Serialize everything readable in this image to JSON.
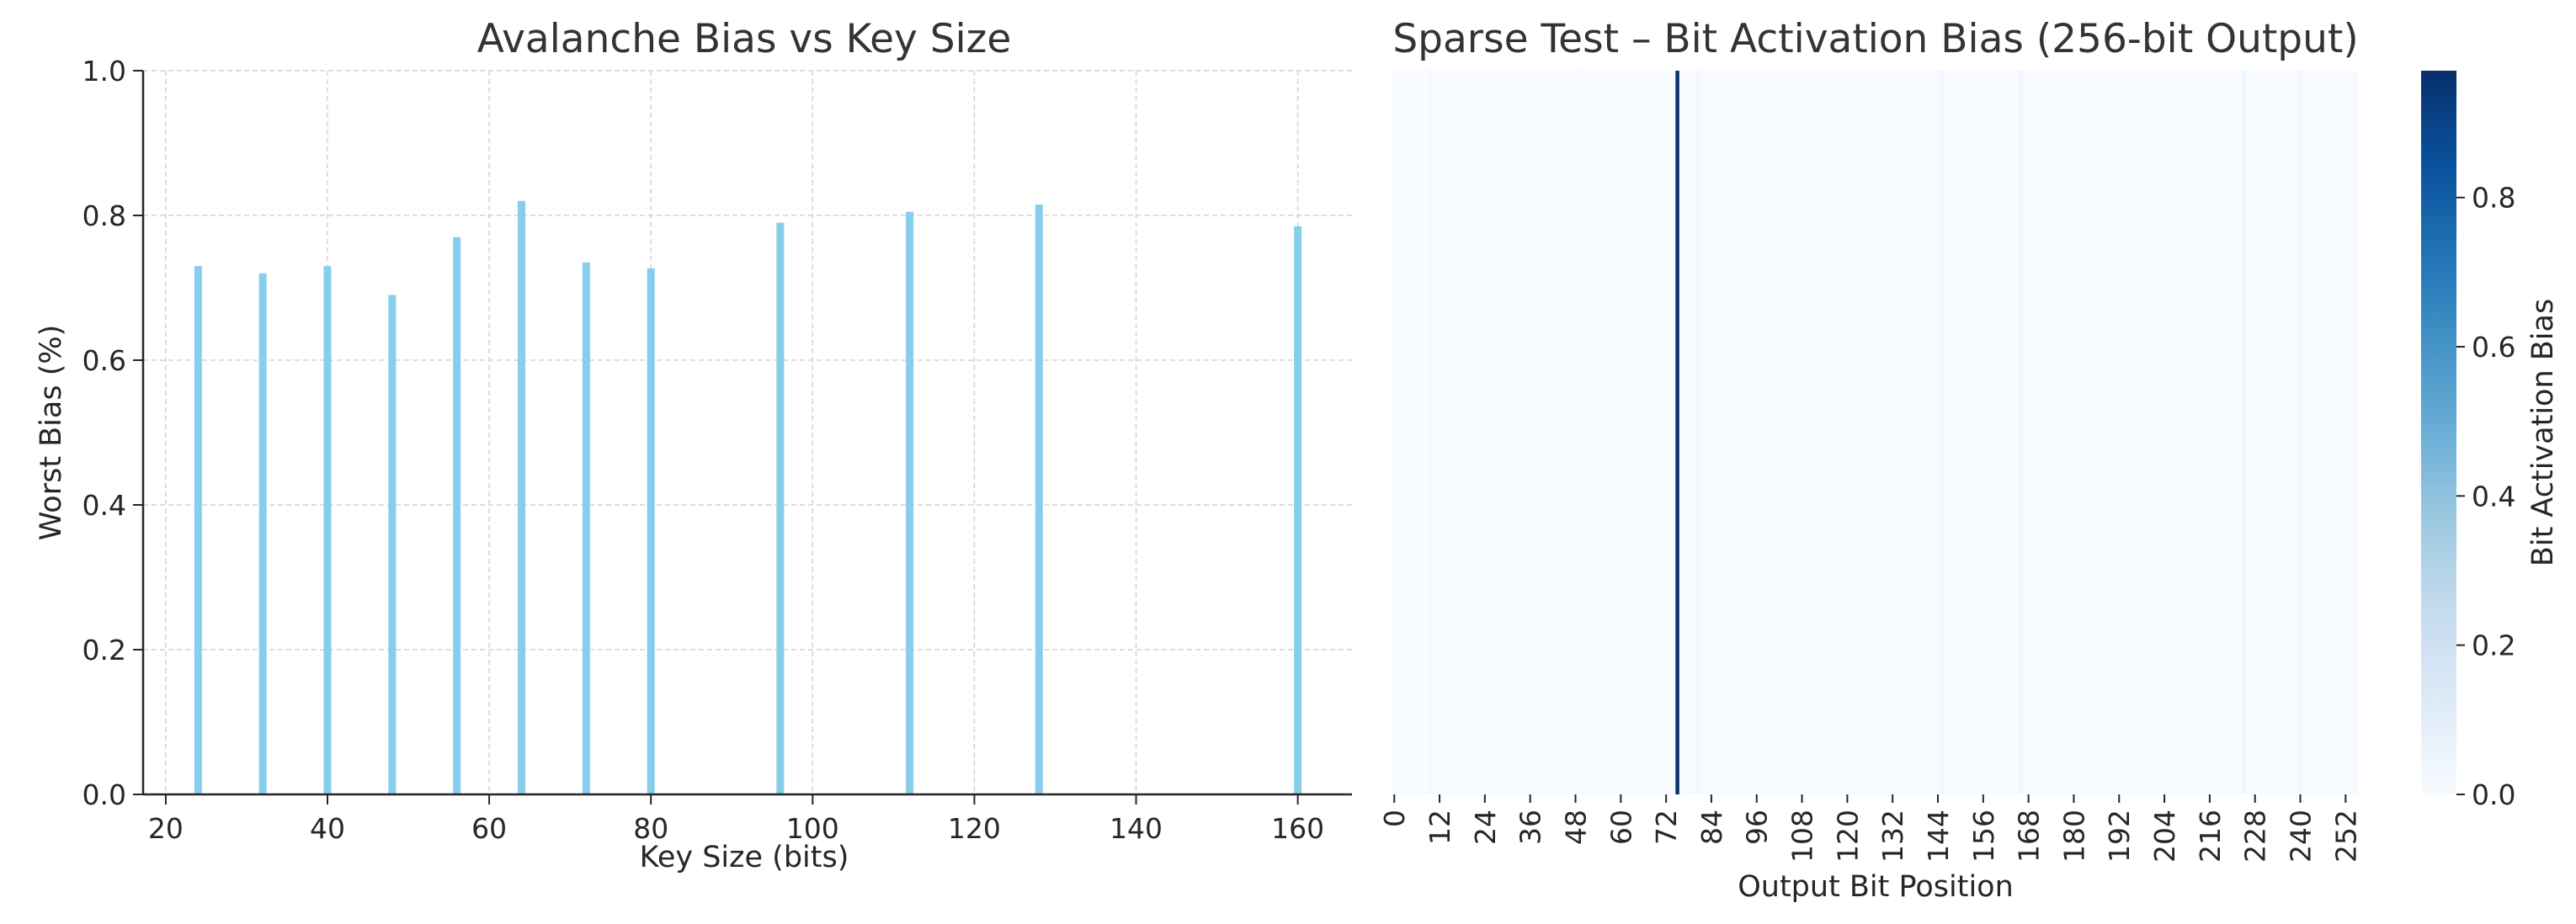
{
  "chart_data": [
    {
      "type": "bar",
      "title": "Avalanche Bias vs Key Size",
      "xlabel": "Key Size (bits)",
      "ylabel": "Worst Bias (%)",
      "x": [
        24,
        32,
        40,
        48,
        56,
        64,
        72,
        80,
        96,
        112,
        128,
        160
      ],
      "values": [
        0.73,
        0.72,
        0.73,
        0.69,
        0.77,
        0.82,
        0.735,
        0.727,
        0.79,
        0.805,
        0.815,
        0.785
      ],
      "xlim": [
        17.2,
        166.7
      ],
      "ylim": [
        0,
        1.0
      ],
      "xticks": [
        20,
        40,
        60,
        80,
        100,
        120,
        140,
        160
      ],
      "yticks": [
        0.0,
        0.2,
        0.4,
        0.6,
        0.8,
        1.0
      ],
      "xtick_labels": [
        "20",
        "40",
        "60",
        "80",
        "100",
        "120",
        "140",
        "160"
      ],
      "ytick_labels": [
        "0.0",
        "0.2",
        "0.4",
        "0.6",
        "0.8",
        "1.0"
      ],
      "grid": true,
      "bar_color": "#87ceeb"
    },
    {
      "type": "heatmap",
      "title": "Sparse Test – Bit Activation Bias (256-bit Output)",
      "xlabel": "Output Bit Position",
      "ylabel": "",
      "n_bits": 256,
      "xticks": [
        0,
        12,
        24,
        36,
        48,
        60,
        72,
        84,
        96,
        108,
        120,
        132,
        144,
        156,
        168,
        180,
        192,
        204,
        216,
        228,
        240,
        252
      ],
      "xtick_labels": [
        "0",
        "12",
        "24",
        "36",
        "48",
        "60",
        "72",
        "84",
        "96",
        "108",
        "120",
        "132",
        "144",
        "156",
        "168",
        "180",
        "192",
        "204",
        "216",
        "228",
        "240",
        "252"
      ],
      "nonzero_bits": [
        {
          "bit": 10,
          "value": 0.02
        },
        {
          "bit": 50,
          "value": 0.015
        },
        {
          "bit": 75,
          "value": 0.97
        },
        {
          "bit": 80,
          "value": 0.02
        },
        {
          "bit": 145,
          "value": 0.03
        },
        {
          "bit": 166,
          "value": 0.03
        },
        {
          "bit": 225,
          "value": 0.045
        },
        {
          "bit": 240,
          "value": 0.02
        }
      ],
      "colorbar": {
        "label": "Bit Activation Bias",
        "range": [
          0,
          0.97
        ],
        "ticks": [
          0.0,
          0.2,
          0.4,
          0.6,
          0.8
        ],
        "tick_labels": [
          "0.0",
          "0.2",
          "0.4",
          "0.6",
          "0.8"
        ],
        "colormap": "Blues"
      }
    }
  ]
}
